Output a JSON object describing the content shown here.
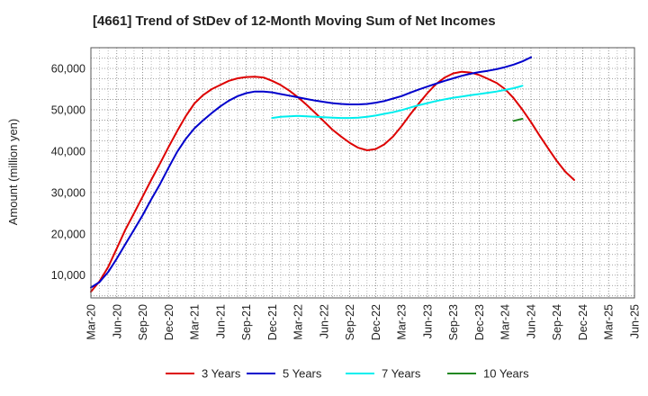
{
  "chart_data": {
    "type": "line",
    "title": "[4661]  Trend of StDev of 12-Month Moving Sum of Net Incomes",
    "ylabel": "Amount (million yen)",
    "xlabel": "",
    "ylim": [
      4500,
      65000
    ],
    "yticks": [
      10000,
      20000,
      30000,
      40000,
      50000,
      60000
    ],
    "ytick_labels": [
      "10,000",
      "20,000",
      "30,000",
      "40,000",
      "50,000",
      "60,000"
    ],
    "x_categories": [
      "Mar-20",
      "Jun-20",
      "Sep-20",
      "Dec-20",
      "Mar-21",
      "Jun-21",
      "Sep-21",
      "Dec-21",
      "Mar-22",
      "Jun-22",
      "Sep-22",
      "Dec-22",
      "Mar-23",
      "Jun-23",
      "Sep-23",
      "Dec-23",
      "Mar-24",
      "Jun-24",
      "Sep-24",
      "Dec-24",
      "Mar-25",
      "Jun-25"
    ],
    "grid": true,
    "legend_position": "bottom",
    "series": [
      {
        "name": "3 Years",
        "color": "#dd0000",
        "points": [
          [
            0,
            6000
          ],
          [
            0.33,
            8500
          ],
          [
            0.67,
            12000
          ],
          [
            1,
            16500
          ],
          [
            1.33,
            21000
          ],
          [
            1.67,
            25000
          ],
          [
            2,
            29000
          ],
          [
            2.33,
            33000
          ],
          [
            2.67,
            37000
          ],
          [
            3,
            41000
          ],
          [
            3.33,
            44800
          ],
          [
            3.67,
            48500
          ],
          [
            4,
            51500
          ],
          [
            4.33,
            53500
          ],
          [
            4.67,
            55000
          ],
          [
            5,
            56000
          ],
          [
            5.33,
            57000
          ],
          [
            5.67,
            57600
          ],
          [
            6,
            57900
          ],
          [
            6.33,
            58000
          ],
          [
            6.67,
            57800
          ],
          [
            7,
            57000
          ],
          [
            7.33,
            56000
          ],
          [
            7.67,
            54600
          ],
          [
            8,
            53000
          ],
          [
            8.33,
            51200
          ],
          [
            8.67,
            49200
          ],
          [
            9,
            47200
          ],
          [
            9.33,
            45200
          ],
          [
            9.67,
            43500
          ],
          [
            10,
            42000
          ],
          [
            10.33,
            40800
          ],
          [
            10.67,
            40200
          ],
          [
            11,
            40500
          ],
          [
            11.33,
            41600
          ],
          [
            11.67,
            43500
          ],
          [
            12,
            46000
          ],
          [
            12.33,
            48800
          ],
          [
            12.67,
            51500
          ],
          [
            13,
            54000
          ],
          [
            13.33,
            56200
          ],
          [
            13.67,
            57800
          ],
          [
            14,
            58800
          ],
          [
            14.33,
            59200
          ],
          [
            14.67,
            59000
          ],
          [
            15,
            58400
          ],
          [
            15.33,
            57500
          ],
          [
            15.67,
            56500
          ],
          [
            16,
            55000
          ],
          [
            16.33,
            52800
          ],
          [
            16.67,
            50000
          ],
          [
            17,
            47000
          ],
          [
            17.33,
            43800
          ],
          [
            17.67,
            40600
          ],
          [
            18,
            37600
          ],
          [
            18.33,
            35000
          ],
          [
            18.67,
            33000
          ]
        ]
      },
      {
        "name": "5 Years",
        "color": "#0000cc",
        "points": [
          [
            0,
            7000
          ],
          [
            0.33,
            8300
          ],
          [
            0.67,
            10800
          ],
          [
            1,
            14000
          ],
          [
            1.33,
            17500
          ],
          [
            1.67,
            21000
          ],
          [
            2,
            24500
          ],
          [
            2.33,
            28300
          ],
          [
            2.67,
            32000
          ],
          [
            3,
            36000
          ],
          [
            3.33,
            39800
          ],
          [
            3.67,
            43000
          ],
          [
            4,
            45500
          ],
          [
            4.33,
            47400
          ],
          [
            4.67,
            49200
          ],
          [
            5,
            50800
          ],
          [
            5.33,
            52200
          ],
          [
            5.67,
            53300
          ],
          [
            6,
            54000
          ],
          [
            6.33,
            54400
          ],
          [
            6.67,
            54400
          ],
          [
            7,
            54200
          ],
          [
            7.33,
            53800
          ],
          [
            7.67,
            53400
          ],
          [
            8,
            53000
          ],
          [
            8.33,
            52600
          ],
          [
            8.67,
            52200
          ],
          [
            9,
            51900
          ],
          [
            9.33,
            51600
          ],
          [
            9.67,
            51400
          ],
          [
            10,
            51300
          ],
          [
            10.33,
            51300
          ],
          [
            10.67,
            51400
          ],
          [
            11,
            51700
          ],
          [
            11.33,
            52100
          ],
          [
            11.67,
            52700
          ],
          [
            12,
            53300
          ],
          [
            12.33,
            54100
          ],
          [
            12.67,
            54900
          ],
          [
            13,
            55600
          ],
          [
            13.33,
            56300
          ],
          [
            13.67,
            57000
          ],
          [
            14,
            57600
          ],
          [
            14.33,
            58200
          ],
          [
            14.67,
            58700
          ],
          [
            15,
            59100
          ],
          [
            15.33,
            59400
          ],
          [
            15.67,
            59800
          ],
          [
            16,
            60300
          ],
          [
            16.33,
            60900
          ],
          [
            16.67,
            61700
          ],
          [
            17,
            62700
          ]
        ]
      },
      {
        "name": "7 Years",
        "color": "#00eeee",
        "points": [
          [
            7,
            48000
          ],
          [
            7.33,
            48300
          ],
          [
            7.67,
            48400
          ],
          [
            8,
            48500
          ],
          [
            8.33,
            48400
          ],
          [
            8.67,
            48300
          ],
          [
            9,
            48200
          ],
          [
            9.33,
            48100
          ],
          [
            9.67,
            48000
          ],
          [
            10,
            48000
          ],
          [
            10.33,
            48100
          ],
          [
            10.67,
            48300
          ],
          [
            11,
            48600
          ],
          [
            11.33,
            49000
          ],
          [
            11.67,
            49400
          ],
          [
            12,
            49900
          ],
          [
            12.33,
            50500
          ],
          [
            12.67,
            51100
          ],
          [
            13,
            51600
          ],
          [
            13.33,
            52100
          ],
          [
            13.67,
            52500
          ],
          [
            14,
            52900
          ],
          [
            14.33,
            53200
          ],
          [
            14.67,
            53500
          ],
          [
            15,
            53800
          ],
          [
            15.33,
            54100
          ],
          [
            15.67,
            54400
          ],
          [
            16,
            54800
          ],
          [
            16.33,
            55200
          ],
          [
            16.67,
            55800
          ]
        ]
      },
      {
        "name": "10 Years",
        "color": "#228822",
        "points": [
          [
            16.33,
            47300
          ],
          [
            16.67,
            47800
          ]
        ]
      }
    ]
  }
}
